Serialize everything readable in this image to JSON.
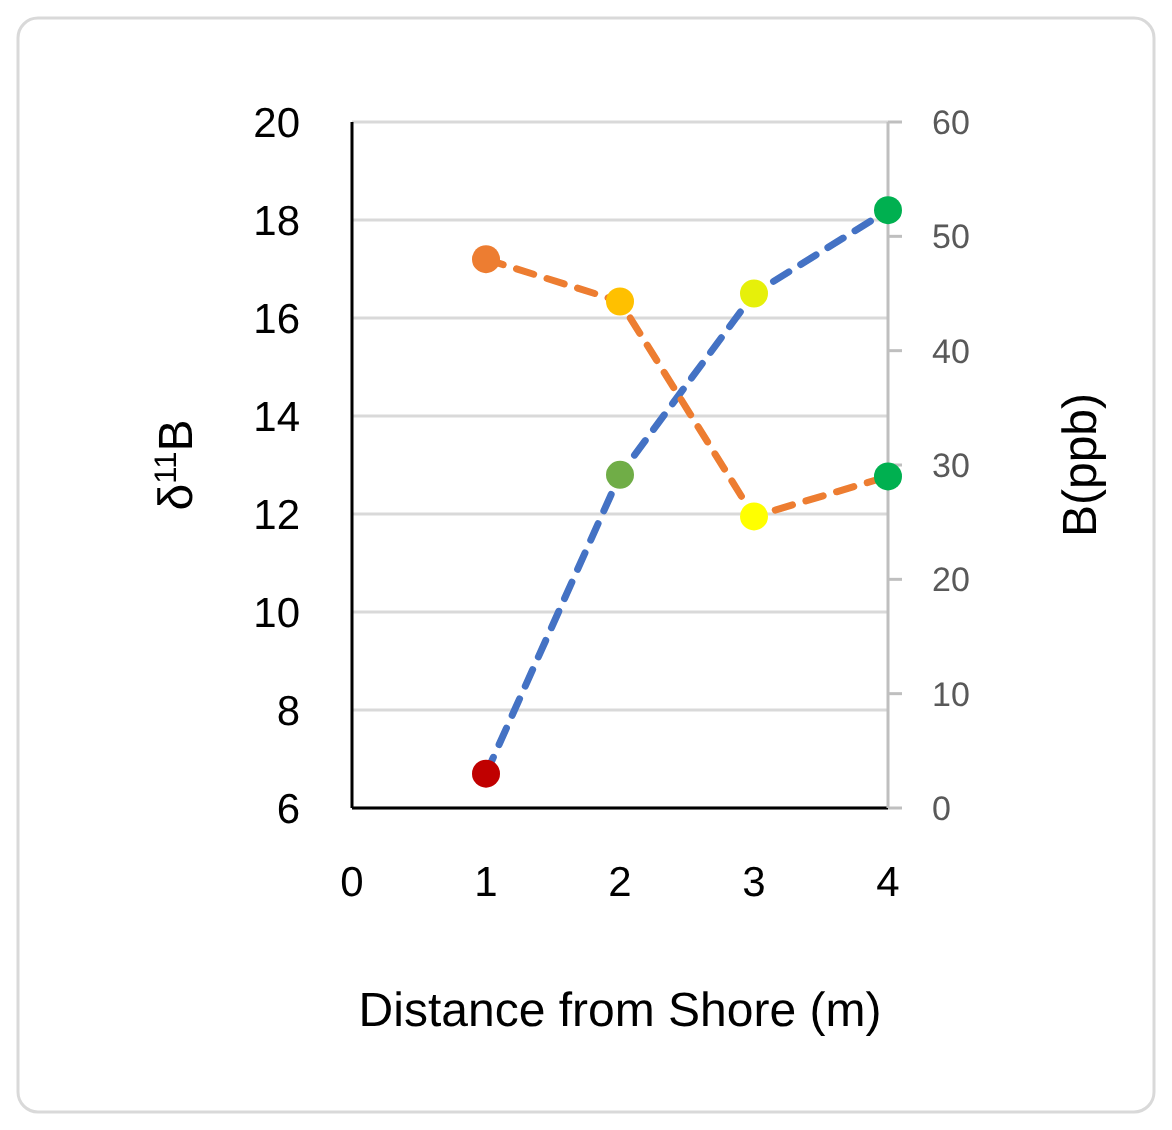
{
  "chart_data": {
    "type": "line",
    "xlabel": "Distance from Shore (m)",
    "ylabel": "δ$^{11}$B",
    "y2label": "B(ppb)",
    "x": [
      1,
      2,
      3,
      4
    ],
    "xlim": [
      0,
      4
    ],
    "xticks": [
      0,
      1,
      2,
      3,
      4
    ],
    "ylim": [
      6,
      20
    ],
    "yticks": [
      6,
      8,
      10,
      12,
      14,
      16,
      18,
      20
    ],
    "y2lim": [
      0,
      60
    ],
    "y2ticks": [
      0,
      10,
      20,
      30,
      40,
      50,
      60
    ],
    "grid": "y",
    "marker": "circle",
    "line_style": "dashed",
    "series": [
      {
        "color": "#4472c4",
        "values": [
          6.7,
          12.8,
          16.5,
          18.2
        ],
        "colors": [
          "#c00000",
          "#70ad47",
          "#e6f00a",
          "#00b050"
        ]
      },
      {
        "color": "#ed7d31",
        "axis": "y2",
        "values": [
          48.0,
          44.3,
          25.5,
          29.0
        ],
        "colors": [
          "#ed7d31",
          "#ffc000",
          "#ffff00",
          "#00b050"
        ]
      }
    ]
  }
}
